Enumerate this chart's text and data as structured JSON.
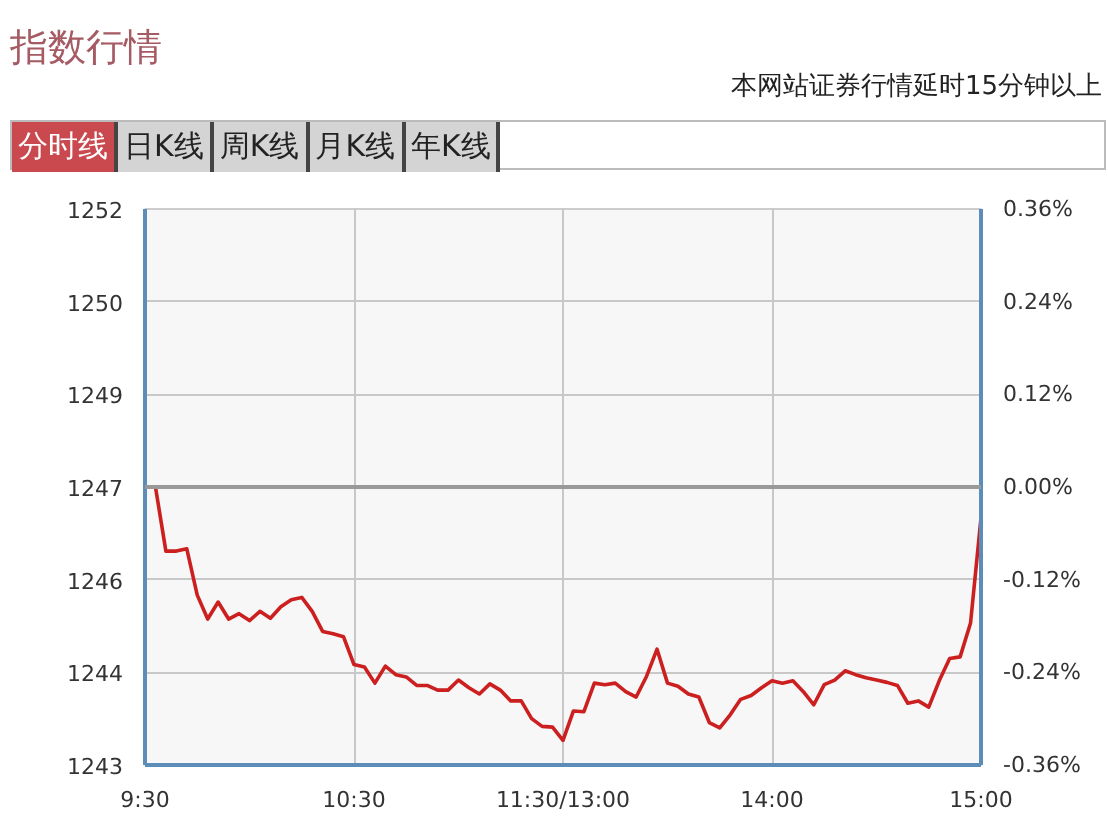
{
  "chart_data": {
    "type": "line",
    "title": "指数行情",
    "annotations": [
      "本网站证券行情延时15分钟以上",
      "分时线",
      "日K线",
      "周K线",
      "月K线",
      "年K线"
    ],
    "categories": [
      "9:30",
      null,
      null,
      null,
      null,
      null,
      null,
      null,
      null,
      null,
      null,
      null,
      null,
      null,
      null,
      null,
      null,
      null,
      null,
      null,
      "10:30",
      null,
      null,
      null,
      null,
      null,
      null,
      null,
      null,
      null,
      null,
      null,
      null,
      null,
      null,
      null,
      null,
      null,
      null,
      null,
      "11:30/13:00",
      null,
      null,
      null,
      null,
      null,
      null,
      null,
      null,
      null,
      null,
      null,
      null,
      null,
      null,
      null,
      null,
      null,
      null,
      null,
      "14:00",
      null,
      null,
      null,
      null,
      null,
      null,
      null,
      null,
      null,
      null,
      null,
      null,
      null,
      null,
      null,
      null,
      null,
      null,
      null,
      "15:00"
    ],
    "series": [
      {
        "color": "#cc1f1f",
        "values": [
          0.0,
          0.0,
          -0.083,
          -0.083,
          -0.08,
          -0.14,
          -0.171,
          -0.149,
          -0.171,
          -0.164,
          -0.173,
          -0.161,
          -0.17,
          -0.155,
          -0.146,
          -0.143,
          -0.161,
          -0.187,
          -0.19,
          -0.194,
          -0.23,
          -0.233,
          -0.254,
          -0.232,
          -0.243,
          -0.246,
          -0.257,
          -0.257,
          -0.263,
          -0.263,
          -0.25,
          -0.26,
          -0.268,
          -0.255,
          -0.263,
          -0.277,
          -0.277,
          -0.3,
          -0.31,
          -0.311,
          -0.328,
          -0.29,
          -0.291,
          -0.254,
          -0.256,
          -0.254,
          -0.265,
          -0.272,
          -0.245,
          -0.21,
          -0.254,
          -0.258,
          -0.268,
          -0.272,
          -0.305,
          -0.312,
          -0.295,
          -0.275,
          -0.27,
          -0.26,
          -0.251,
          -0.254,
          -0.251,
          -0.265,
          -0.282,
          -0.256,
          -0.25,
          -0.238,
          -0.243,
          -0.247,
          -0.25,
          -0.253,
          -0.257,
          -0.28,
          -0.277,
          -0.285,
          -0.251,
          -0.222,
          -0.22,
          -0.176,
          -0.04
        ]
      }
    ],
    "ylim": [
      -0.36,
      0.36
    ],
    "yticks": [
      {
        "value": -0.36,
        "label": "-0.36%"
      },
      {
        "value": -0.24,
        "label": "-0.24%"
      },
      {
        "value": -0.12,
        "label": "-0.12%"
      },
      {
        "value": 0,
        "label": "0.00%"
      },
      {
        "value": 0.12,
        "label": "0.12%"
      },
      {
        "value": 0.24,
        "label": "0.24%"
      },
      {
        "value": 0.36,
        "label": "0.36%"
      }
    ],
    "y2lim": [
      1242.71,
      1251.69
    ],
    "y2ticks": [
      {
        "value": 1242.71,
        "label": "1243"
      },
      {
        "value": 1244.21,
        "label": "1244"
      },
      {
        "value": 1245.7,
        "label": "1246"
      },
      {
        "value": 1247.2,
        "label": "1247"
      },
      {
        "value": 1248.7,
        "label": "1249"
      },
      {
        "value": 1250.19,
        "label": "1250"
      },
      {
        "value": 1251.69,
        "label": "1252"
      }
    ],
    "ref_lines": [
      {
        "axis": "y",
        "value": 0,
        "color": "#999999"
      }
    ],
    "grid": true,
    "marker": "none",
    "line_style": "solid"
  }
}
